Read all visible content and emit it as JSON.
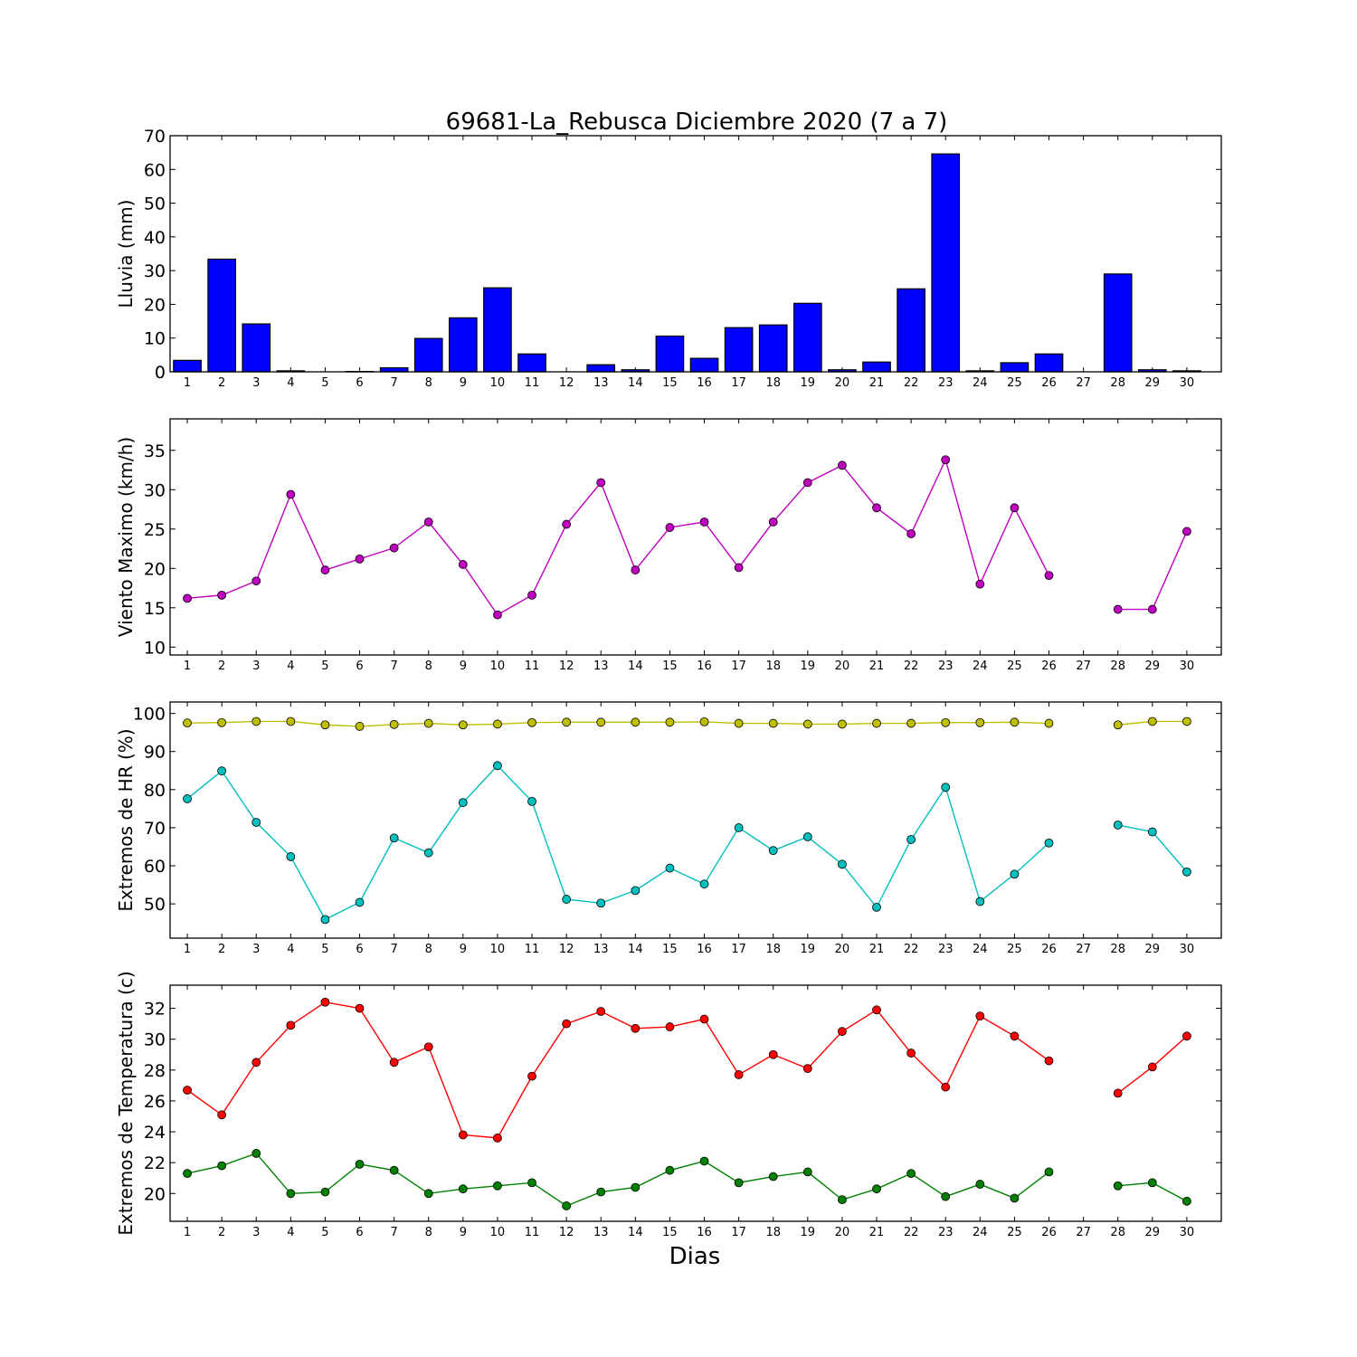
{
  "title": "69681-La_Rebusca Diciembre 2020  (7 a 7)",
  "xlabel": "Dias",
  "colors": {
    "bar": "#0000ff",
    "wind": "#bf00bf",
    "hr_max": "#bfbf00",
    "hr_min": "#00bfbf",
    "temp_max": "#ff0000",
    "temp_min": "#008000"
  },
  "chart_data": [
    {
      "type": "bar",
      "ylabel": "Lluvia (mm)",
      "ylim": [
        0,
        70
      ],
      "yticks": [
        0,
        10,
        20,
        30,
        40,
        50,
        60,
        70
      ],
      "categories": [
        1,
        2,
        3,
        4,
        5,
        6,
        7,
        8,
        9,
        10,
        11,
        12,
        13,
        14,
        15,
        16,
        17,
        18,
        19,
        20,
        21,
        22,
        23,
        24,
        25,
        26,
        27,
        28,
        29,
        30
      ],
      "values": [
        3.4,
        33.4,
        14.2,
        0.3,
        0,
        0.1,
        1.2,
        9.9,
        16.0,
        24.9,
        5.3,
        0,
        2.1,
        0.6,
        10.6,
        4.0,
        13.1,
        13.9,
        20.3,
        0.6,
        2.9,
        24.6,
        64.6,
        0.3,
        2.7,
        5.3,
        0,
        29.0,
        0.6,
        0.3
      ],
      "series": [
        {
          "color_key": "bar"
        }
      ]
    },
    {
      "type": "line",
      "ylabel": "Viento Maximo (km/h)",
      "ylim": [
        9,
        39
      ],
      "yticks": [
        10,
        15,
        20,
        25,
        30,
        35
      ],
      "x": [
        1,
        2,
        3,
        4,
        5,
        6,
        7,
        8,
        9,
        10,
        11,
        12,
        13,
        14,
        15,
        16,
        17,
        18,
        19,
        20,
        21,
        22,
        23,
        24,
        25,
        26,
        27,
        28,
        29,
        30
      ],
      "series": [
        {
          "color_key": "wind",
          "values": [
            16.2,
            16.6,
            18.4,
            29.4,
            19.8,
            21.2,
            22.6,
            25.9,
            20.5,
            14.1,
            16.6,
            25.6,
            30.9,
            19.8,
            25.2,
            25.9,
            20.1,
            25.9,
            30.9,
            33.1,
            27.7,
            24.4,
            33.8,
            18.0,
            27.7,
            19.1,
            null,
            14.8,
            14.8,
            24.7
          ]
        }
      ]
    },
    {
      "type": "line",
      "ylabel": "Extremos de HR (%)",
      "ylim": [
        41,
        103
      ],
      "yticks": [
        50,
        60,
        70,
        80,
        90,
        100
      ],
      "x": [
        1,
        2,
        3,
        4,
        5,
        6,
        7,
        8,
        9,
        10,
        11,
        12,
        13,
        14,
        15,
        16,
        17,
        18,
        19,
        20,
        21,
        22,
        23,
        24,
        25,
        26,
        27,
        28,
        29,
        30
      ],
      "series": [
        {
          "color_key": "hr_max",
          "values": [
            97.5,
            97.6,
            97.9,
            97.9,
            97.0,
            96.6,
            97.1,
            97.4,
            97.0,
            97.2,
            97.6,
            97.7,
            97.7,
            97.7,
            97.7,
            97.8,
            97.4,
            97.4,
            97.2,
            97.2,
            97.4,
            97.4,
            97.6,
            97.6,
            97.7,
            97.4,
            null,
            97.0,
            97.9,
            97.9
          ]
        },
        {
          "color_key": "hr_min",
          "values": [
            77.6,
            84.9,
            71.4,
            62.4,
            45.9,
            50.4,
            67.3,
            63.4,
            76.6,
            86.3,
            76.9,
            51.2,
            50.2,
            53.5,
            59.4,
            55.2,
            70.0,
            64.0,
            67.6,
            60.4,
            49.1,
            66.9,
            80.6,
            50.6,
            57.8,
            66.0,
            null,
            70.7,
            68.9,
            58.4
          ]
        }
      ]
    },
    {
      "type": "line",
      "ylabel": "Extremos de Temperatura (c)",
      "ylim": [
        18.2,
        33.5
      ],
      "yticks": [
        20,
        22,
        24,
        26,
        28,
        30,
        32
      ],
      "x": [
        1,
        2,
        3,
        4,
        5,
        6,
        7,
        8,
        9,
        10,
        11,
        12,
        13,
        14,
        15,
        16,
        17,
        18,
        19,
        20,
        21,
        22,
        23,
        24,
        25,
        26,
        27,
        28,
        29,
        30
      ],
      "series": [
        {
          "color_key": "temp_max",
          "values": [
            26.7,
            25.1,
            28.5,
            30.9,
            32.4,
            32.0,
            28.5,
            29.5,
            23.8,
            23.6,
            27.6,
            31.0,
            31.8,
            30.7,
            30.8,
            31.3,
            27.7,
            29.0,
            28.1,
            30.5,
            31.9,
            29.1,
            26.9,
            31.5,
            30.2,
            28.6,
            null,
            26.5,
            28.2,
            30.2
          ]
        },
        {
          "color_key": "temp_min",
          "values": [
            21.3,
            21.8,
            22.6,
            20.0,
            20.1,
            21.9,
            21.5,
            20.0,
            20.3,
            20.5,
            20.7,
            19.2,
            20.1,
            20.4,
            21.5,
            22.1,
            20.7,
            21.1,
            21.4,
            19.6,
            20.3,
            21.3,
            19.8,
            20.6,
            19.7,
            21.4,
            null,
            20.5,
            20.7,
            19.5
          ]
        }
      ]
    }
  ]
}
